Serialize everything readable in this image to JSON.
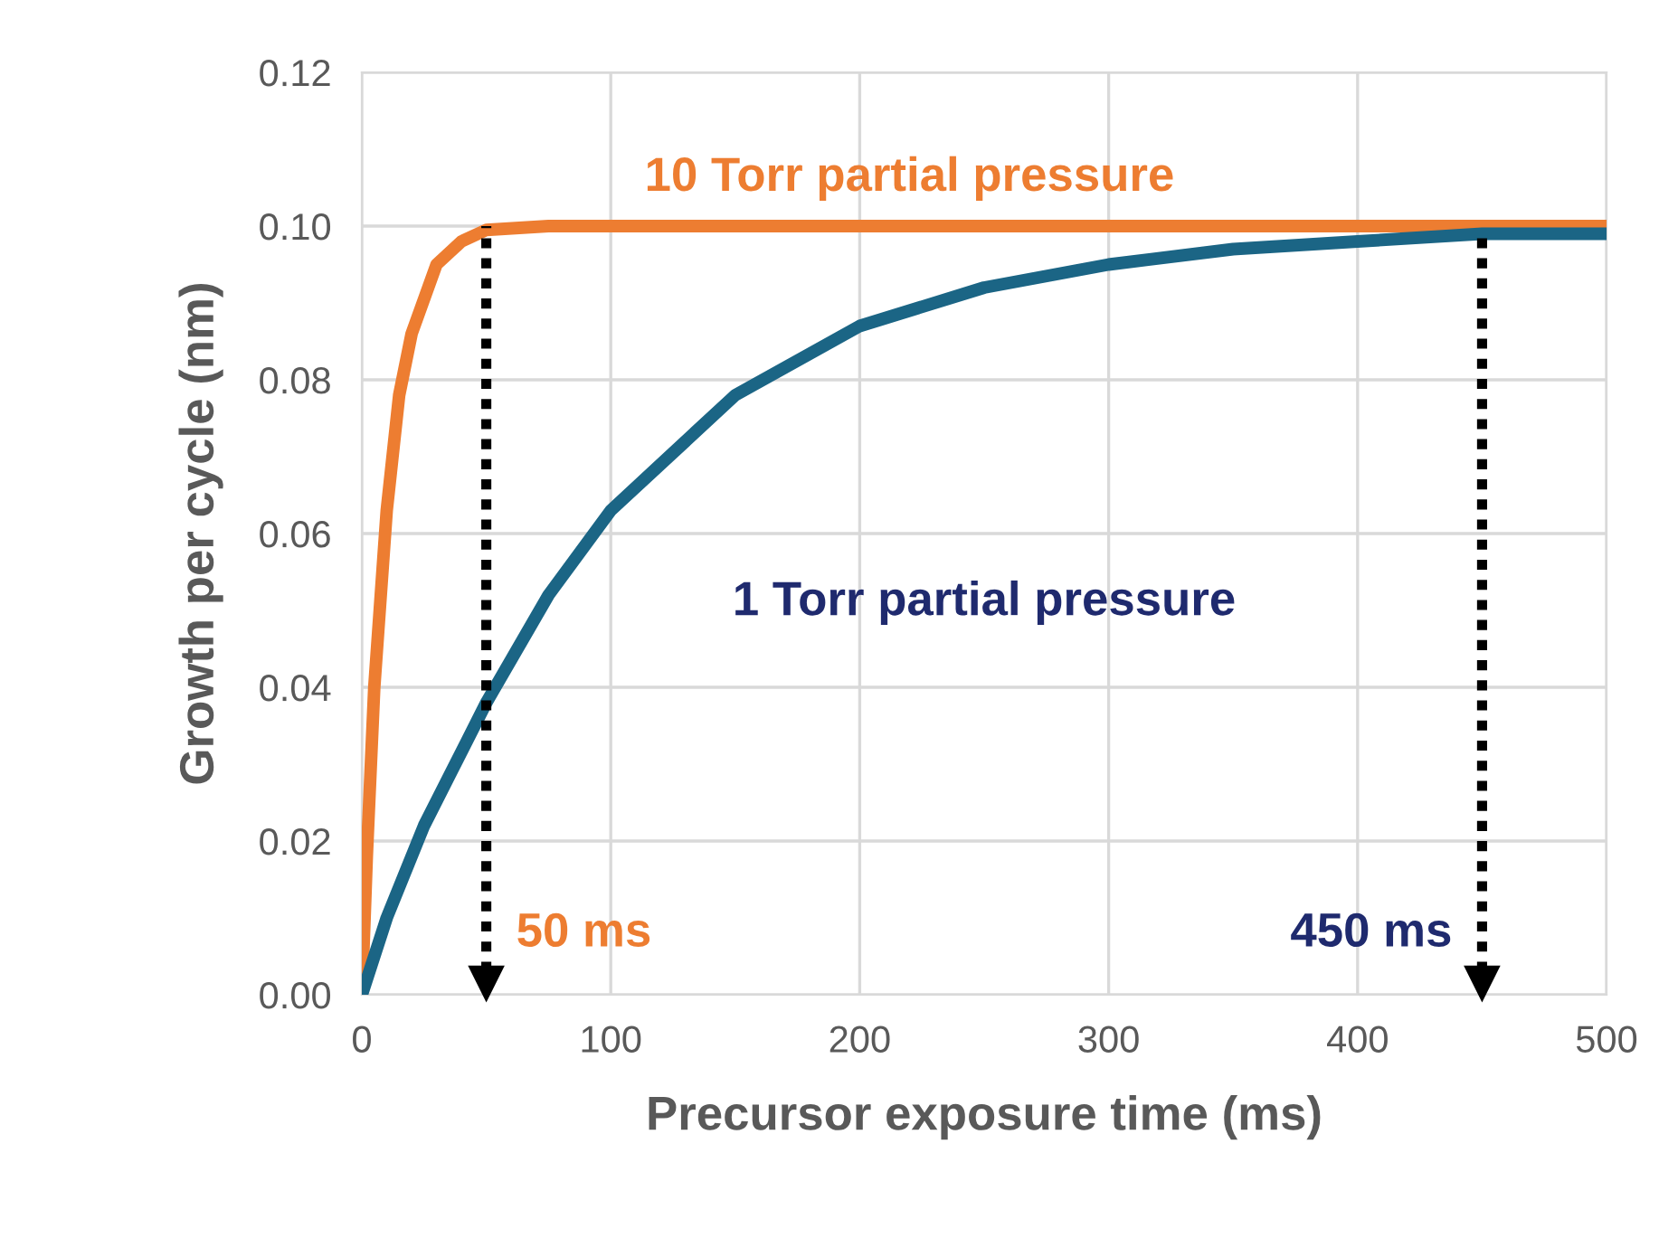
{
  "chart_data": {
    "type": "line",
    "xlabel": "Precursor exposure time (ms)",
    "ylabel": "Growth per cycle (nm)",
    "xlim": [
      0,
      500
    ],
    "xticks": [
      0,
      100,
      200,
      300,
      400,
      500
    ],
    "ylim": [
      0,
      0.12
    ],
    "yticks": [
      {
        "value": 0,
        "label": "0.00"
      },
      {
        "value": 0.02,
        "label": "0.02"
      },
      {
        "value": 0.04,
        "label": "0.04"
      },
      {
        "value": 0.06,
        "label": "0.06"
      },
      {
        "value": 0.08,
        "label": "0.08"
      },
      {
        "value": 0.1,
        "label": "0.10"
      },
      {
        "value": 0.12,
        "label": "0.12"
      }
    ],
    "grid": true,
    "legend": false,
    "series": [
      {
        "name": "10 Torr partial pressure",
        "color": "#ed7d31",
        "x": [
          0,
          2,
          5,
          10,
          15,
          20,
          30,
          40,
          50,
          75,
          100,
          200,
          300,
          400,
          500
        ],
        "values": [
          0,
          0.018,
          0.04,
          0.063,
          0.078,
          0.086,
          0.095,
          0.098,
          0.0995,
          0.1,
          0.1,
          0.1,
          0.1,
          0.1,
          0.1
        ]
      },
      {
        "name": "1 Torr partial pressure",
        "color": "#1b6585",
        "x": [
          0,
          10,
          25,
          50,
          75,
          100,
          150,
          200,
          250,
          300,
          350,
          400,
          450,
          500
        ],
        "values": [
          0,
          0.01,
          0.022,
          0.038,
          0.052,
          0.063,
          0.078,
          0.087,
          0.092,
          0.095,
          0.097,
          0.098,
          0.099,
          0.099
        ]
      }
    ],
    "ref_lines": [
      {
        "axis": "x",
        "value": 50,
        "label": "50 ms",
        "color": "#000000",
        "line_style": "dotted"
      },
      {
        "axis": "x",
        "value": 450,
        "label": "450 ms",
        "color": "#000000",
        "line_style": "dotted"
      }
    ]
  }
}
